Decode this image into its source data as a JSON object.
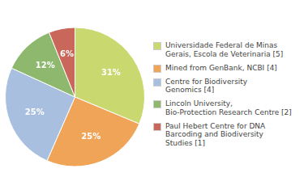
{
  "chart_data": {
    "type": "pie",
    "categories": [
      "Universidade Federal de Minas\nGerais, Escola de Veterinaria [5]",
      "Mined from GenBank, NCBI [4]",
      "Centre for Biodiversity\nGenomics [4]",
      "Lincoln University,\nBio-Protection Research Centre [2]",
      "Paul Hebert Centre for DNA\nBarcoding and Biodiversity\nStudies [1]"
    ],
    "values": [
      31,
      25,
      25,
      12,
      6
    ],
    "value_labels": [
      "31%",
      "25%",
      "25%",
      "12%",
      "6%"
    ],
    "colors": [
      "#c9d970",
      "#f0a458",
      "#a8bfe0",
      "#8db86e",
      "#c9675a"
    ],
    "data_labels": true,
    "legend": "right"
  }
}
